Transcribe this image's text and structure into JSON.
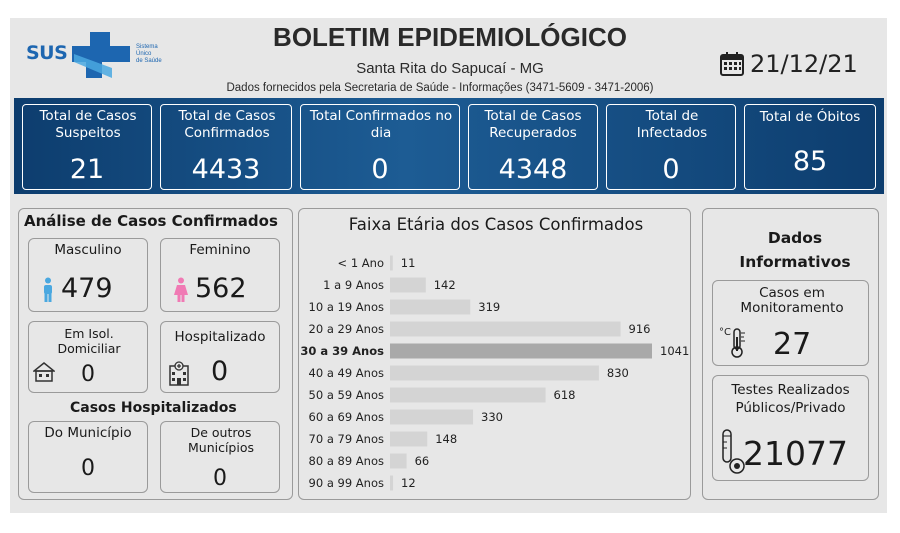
{
  "header": {
    "logo_text": "SUS",
    "logo_small": [
      "Sistema",
      "Único",
      "de Saúde"
    ],
    "title": "BOLETIM EPIDEMIOLÓGICO",
    "city": "Santa Rita do Sapucaí - MG",
    "source": "Dados fornecidos pela Secretaria de Saúde - Informações (3471-5609 - 3471-2006)",
    "date": "21/12/21",
    "calendar_icon": "calendar-icon"
  },
  "kpis": [
    {
      "label": "Total de Casos Suspeitos",
      "value": "21"
    },
    {
      "label": "Total de Casos Confirmados",
      "value": "4433"
    },
    {
      "label": "Total Confirmados no dia",
      "value": "0"
    },
    {
      "label": "Total de Casos Recuperados",
      "value": "4348"
    },
    {
      "label": "Total de Infectados",
      "value": "0"
    },
    {
      "label": "Total de Óbitos",
      "value": "85"
    }
  ],
  "confirmed": {
    "title": "Análise de Casos Confirmados",
    "male_label": "Masculino",
    "male_value": "479",
    "female_label": "Feminino",
    "female_value": "562",
    "isolation_label": "Em Isol. Domiciliar",
    "isolation_value": "0",
    "hospitalized_label": "Hospitalizado",
    "hospitalized_value": "0"
  },
  "hospitalized": {
    "title": "Casos Hospitalizados",
    "municipio_label": "Do Município",
    "municipio_value": "0",
    "outros_label": "De outros Municípios",
    "outros_value": "0"
  },
  "chart_data": {
    "type": "bar",
    "orientation": "horizontal",
    "title": "Faixa Etária dos Casos Confirmados",
    "categories": [
      "< 1 Ano",
      "1 a 9 Anos",
      "10 a 19 Anos",
      "20 a 29 Anos",
      "30 a 39 Anos",
      "40 a 49 Anos",
      "50 a 59 Anos",
      "60 a 69 Anos",
      "70 a 79 Anos",
      "80 a 89 Anos",
      "90 a 99 Anos"
    ],
    "values": [
      11,
      142,
      319,
      916,
      1041,
      830,
      618,
      330,
      148,
      66,
      12
    ],
    "highlight": "30 a 39 Anos",
    "bar_color": "#d4d4d4",
    "highlight_color": "#a9a9a9",
    "xlim": [
      0,
      1041
    ]
  },
  "info": {
    "title": "Dados Informativos",
    "monitoring_label": "Casos em Monitoramento",
    "monitoring_value": "27",
    "tests_label": "Testes Realizados Públicos/Privado",
    "tests_value": "21077"
  },
  "colors": {
    "banner": "#1d5c94",
    "sus_blue": "#1d66b0",
    "male": "#4aa8e0",
    "female": "#f07ab4"
  }
}
